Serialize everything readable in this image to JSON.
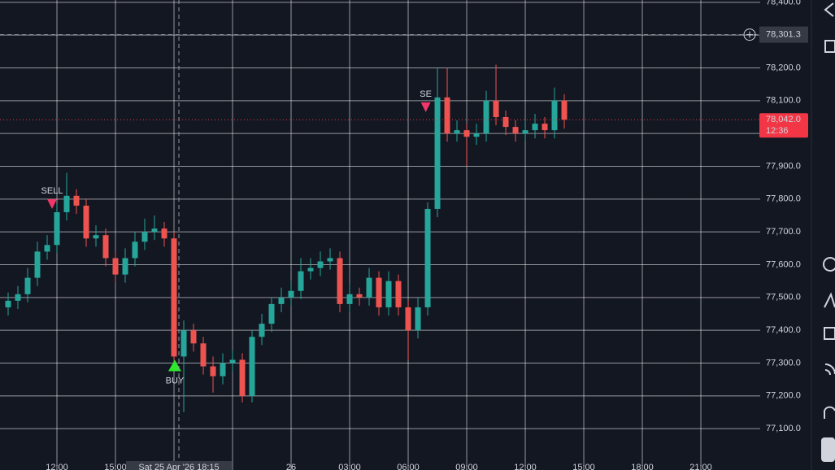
{
  "chart_data": {
    "type": "candlestick",
    "up_color": "#26a69a",
    "down_color": "#ef5350",
    "grid": true,
    "x": [
      -2.5,
      -2,
      -1.5,
      -1,
      -0.5,
      0,
      0.5,
      1,
      1.5,
      2,
      2.5,
      3,
      3.5,
      4,
      4.5,
      5,
      5.5,
      6,
      6.5,
      7,
      7.5,
      8,
      8.5,
      9,
      9.5,
      10,
      10.5,
      11,
      11.5,
      12,
      12.5,
      13,
      13.5,
      14,
      14.5,
      15,
      15.5,
      16,
      16.5,
      17,
      17.5,
      18,
      18.5,
      19,
      19.5,
      20,
      20.5,
      21,
      21.5,
      22,
      22.5,
      23,
      23.5,
      24,
      24.5,
      25,
      25.5,
      26
    ],
    "open": [
      77470,
      77490,
      77510,
      77560,
      77640,
      77660,
      77760,
      77810,
      77780,
      77680,
      77690,
      77620,
      77570,
      77620,
      77670,
      77700,
      77710,
      77680,
      77320,
      77400,
      77360,
      77290,
      77260,
      77300,
      77310,
      77200,
      77380,
      77420,
      77480,
      77500,
      77520,
      77580,
      77590,
      77610,
      77620,
      77480,
      77510,
      77500,
      77560,
      77470,
      77550,
      77470,
      77400,
      77470,
      77770,
      78110,
      78000,
      78010,
      77990,
      78000,
      78100,
      78050,
      78020,
      78000,
      78010,
      78030,
      78010,
      78100
    ],
    "high": [
      77515,
      77535,
      77590,
      77670,
      77690,
      77785,
      77880,
      77830,
      77800,
      77720,
      77710,
      77640,
      77650,
      77700,
      77740,
      77750,
      77730,
      77700,
      77430,
      77420,
      77380,
      77320,
      77330,
      77340,
      77330,
      77400,
      77450,
      77500,
      77530,
      77550,
      77620,
      77620,
      77640,
      77650,
      77640,
      77540,
      77530,
      77590,
      77580,
      77580,
      77570,
      77490,
      77500,
      77790,
      78200,
      78200,
      78040,
      78030,
      78030,
      78130,
      78210,
      78070,
      78040,
      78040,
      78060,
      78050,
      78140,
      78120
    ],
    "low": [
      77445,
      77465,
      77485,
      77535,
      77615,
      77635,
      77735,
      77755,
      77655,
      77655,
      77595,
      77545,
      77545,
      77595,
      77645,
      77675,
      77655,
      77290,
      77150,
      77335,
      77265,
      77210,
      77235,
      77275,
      77180,
      77180,
      77355,
      77395,
      77455,
      77475,
      77495,
      77555,
      77565,
      77585,
      77455,
      77455,
      77475,
      77475,
      77445,
      77445,
      77445,
      77310,
      77375,
      77445,
      77745,
      77975,
      77975,
      77900,
      77965,
      77975,
      78025,
      77995,
      77975,
      77975,
      77985,
      77985,
      77985,
      78015
    ],
    "close": [
      77490,
      77510,
      77560,
      77640,
      77660,
      77760,
      77810,
      77780,
      77680,
      77690,
      77620,
      77570,
      77620,
      77670,
      77700,
      77710,
      77680,
      77320,
      77400,
      77360,
      77290,
      77260,
      77300,
      77310,
      77200,
      77380,
      77420,
      77480,
      77500,
      77520,
      77580,
      77590,
      77610,
      77620,
      77480,
      77510,
      77500,
      77560,
      77470,
      77550,
      77470,
      77400,
      77470,
      77770,
      78110,
      78000,
      78010,
      77990,
      78000,
      78100,
      78050,
      78020,
      78000,
      78010,
      78030,
      78010,
      78100,
      78042
    ],
    "xlim": [
      -2.917,
      36.04
    ],
    "ylim": [
      76974,
      78407
    ],
    "xticks": [
      {
        "value": 0,
        "label": "12:00"
      },
      {
        "value": 3,
        "label": "15:00"
      },
      {
        "value": 12,
        "label": "26"
      },
      {
        "value": 15,
        "label": "03:00"
      },
      {
        "value": 18,
        "label": "06:00"
      },
      {
        "value": 21,
        "label": "09:00"
      },
      {
        "value": 24,
        "label": "12:00"
      },
      {
        "value": 27,
        "label": "15:00"
      },
      {
        "value": 30,
        "label": "18:00"
      },
      {
        "value": 33,
        "label": "21:00"
      }
    ],
    "grid_x": [
      0,
      3,
      6,
      9,
      12,
      15,
      18,
      21,
      24,
      27,
      30,
      33
    ],
    "yticks": [
      {
        "value": 77100,
        "label": "77,100.0"
      },
      {
        "value": 77200,
        "label": "77,200.0"
      },
      {
        "value": 77300,
        "label": "77,300.0"
      },
      {
        "value": 77400,
        "label": "77,400.0"
      },
      {
        "value": 77500,
        "label": "77,500.0"
      },
      {
        "value": 77600,
        "label": "77,600.0"
      },
      {
        "value": 77700,
        "label": "77,700.0"
      },
      {
        "value": 77800,
        "label": "77,800.0"
      },
      {
        "value": 77900,
        "label": "77,900.0"
      },
      {
        "value": 78000,
        "label": "78,000.0"
      },
      {
        "value": 78100,
        "label": "78,100.0"
      },
      {
        "value": 78200,
        "label": "78,200.0"
      },
      {
        "value": 78300,
        "label": "78,300.0"
      },
      {
        "value": 78400,
        "label": "78,400.0"
      }
    ],
    "signals": [
      {
        "text": "SELL",
        "x": -0.25,
        "price": 77775,
        "color": "#f23669",
        "direction": "down"
      },
      {
        "text": "BUY",
        "x": 6.04,
        "price": 77305,
        "color": "#2ee82e",
        "direction": "up"
      },
      {
        "text": "SE",
        "x": 18.9,
        "price": 78070,
        "color": "#f23669",
        "direction": "down"
      }
    ],
    "last_price": {
      "value": 78042.0,
      "label": "78,042.0",
      "countdown": "12:36",
      "color": "#f23645"
    },
    "crosshair": {
      "price": 78301.3,
      "price_label": "78,301.3",
      "x": 6.25,
      "time_label": "Sat 25 Apr '26  18:15"
    }
  }
}
